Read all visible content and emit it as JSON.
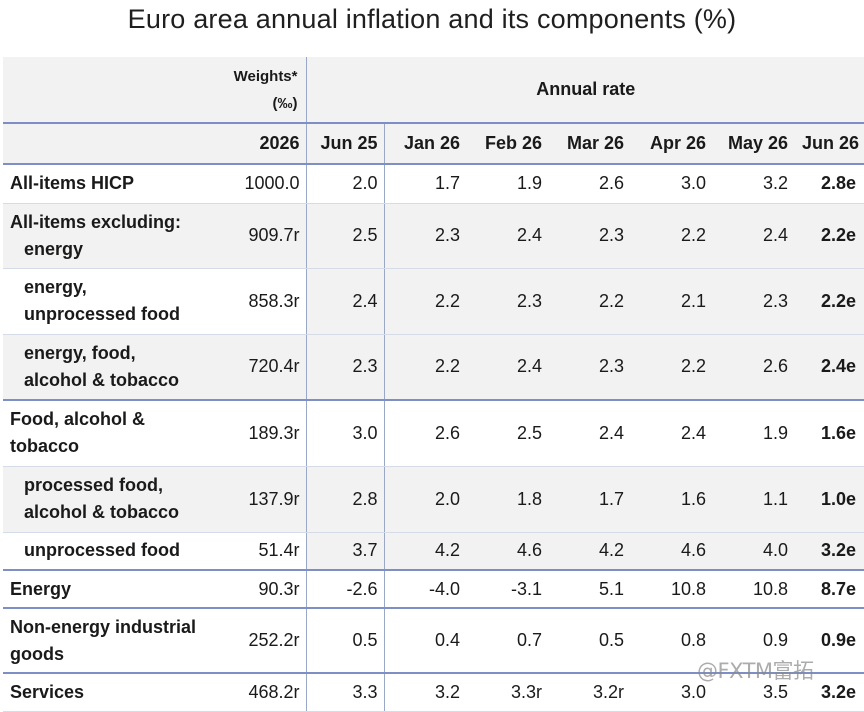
{
  "title": "Euro area annual inflation and its components (%)",
  "header": {
    "weights_label_line1": "Weights*",
    "weights_label_line2": "(‰)",
    "annual_rate_label": "Annual rate",
    "year_label": "2026",
    "columns": [
      "Jun 25",
      "Jan 26",
      "Feb 26",
      "Mar 26",
      "Apr 26",
      "May 26",
      "Jun 26"
    ]
  },
  "rows": [
    {
      "label_line1": "All-items HICP",
      "label_line2": "",
      "weight": "1000.0",
      "values": [
        "2.0",
        "1.7",
        "1.9",
        "2.6",
        "3.0",
        "3.2",
        "2.8e"
      ]
    },
    {
      "label_line1": "All-items excluding:",
      "label_line2": "energy",
      "weight": "909.7r",
      "values": [
        "2.5",
        "2.3",
        "2.4",
        "2.3",
        "2.2",
        "2.4",
        "2.2e"
      ]
    },
    {
      "label_line1": "energy,",
      "label_line2": "unprocessed food",
      "weight": "858.3r",
      "values": [
        "2.4",
        "2.2",
        "2.3",
        "2.2",
        "2.1",
        "2.3",
        "2.2e"
      ]
    },
    {
      "label_line1": "energy, food,",
      "label_line2": "alcohol & tobacco",
      "weight": "720.4r",
      "values": [
        "2.3",
        "2.2",
        "2.4",
        "2.3",
        "2.2",
        "2.6",
        "2.4e"
      ]
    },
    {
      "label_line1": "Food, alcohol &",
      "label_line2": "tobacco",
      "weight": "189.3r",
      "values": [
        "3.0",
        "2.6",
        "2.5",
        "2.4",
        "2.4",
        "1.9",
        "1.6e"
      ]
    },
    {
      "label_line1": "processed food,",
      "label_line2": "alcohol & tobacco",
      "weight": "137.9r",
      "values": [
        "2.8",
        "2.0",
        "1.8",
        "1.7",
        "1.6",
        "1.1",
        "1.0e"
      ]
    },
    {
      "label_line1": "unprocessed food",
      "label_line2": "",
      "weight": "51.4r",
      "values": [
        "3.7",
        "4.2",
        "4.6",
        "4.2",
        "4.6",
        "4.0",
        "3.2e"
      ]
    },
    {
      "label_line1": "Energy",
      "label_line2": "",
      "weight": "90.3r",
      "values": [
        "-2.6",
        "-4.0",
        "-3.1",
        "5.1",
        "10.8",
        "10.8",
        "8.7e"
      ]
    },
    {
      "label_line1": "Non-energy industrial",
      "label_line2": "goods",
      "weight": "252.2r",
      "values": [
        "0.5",
        "0.4",
        "0.7",
        "0.5",
        "0.8",
        "0.9",
        "0.9e"
      ]
    },
    {
      "label_line1": "Services",
      "label_line2": "",
      "weight": "468.2r",
      "values": [
        "3.3",
        "3.2",
        "3.3r",
        "3.2r",
        "3.0",
        "3.5",
        "3.2e"
      ]
    }
  ],
  "watermark": "@FXTM富拓"
}
